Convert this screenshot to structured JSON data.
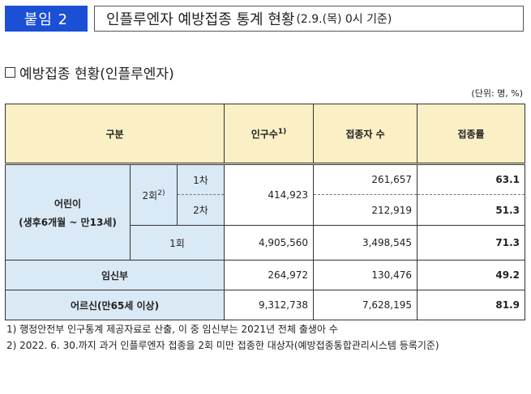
{
  "header": {
    "badge": "붙임 2",
    "title_main": "인플루엔자 예방접종 통계 현황",
    "title_sub": "(2.9.(목) 0시 기준)"
  },
  "section": {
    "title": "예방접종 현황(인플루엔자)",
    "unit": "(단위: 명, %)"
  },
  "table": {
    "headers": {
      "category": "구분",
      "population": "인구수",
      "population_sup": "1)",
      "vaccinated": "접종자 수",
      "rate": "접종률"
    },
    "children": {
      "label_line1": "어린이",
      "label_line2": "(생후6개월 ~ 만13세)",
      "two_dose": {
        "label": "2회",
        "label_sup": "2)",
        "population": "414,923",
        "first": {
          "label": "1차",
          "vaccinated": "261,657",
          "rate": "63.1"
        },
        "second": {
          "label": "2차",
          "vaccinated": "212,919",
          "rate": "51.3"
        }
      },
      "one_dose": {
        "label": "1회",
        "population": "4,905,560",
        "vaccinated": "3,498,545",
        "rate": "71.3"
      }
    },
    "pregnant": {
      "label": "임신부",
      "population": "264,972",
      "vaccinated": "130,476",
      "rate": "49.2"
    },
    "elderly": {
      "label": "어르신(만65세 이상)",
      "population": "9,312,738",
      "vaccinated": "7,628,195",
      "rate": "81.9"
    }
  },
  "footnotes": {
    "note1": "1) 행정안전부 인구통계 제공자료로 산출, 이 중 임신부는 2021년 전체 출생아 수",
    "note2": "2) 2022. 6. 30.까지 과거 인플루엔자 접종을 2회 미만 접종한 대상자(예방접종통합관리시스템 등록기준)"
  },
  "colors": {
    "badge": "#1a4fd6",
    "header_fill": "#fbefc6",
    "row_fill": "#dae9f6"
  }
}
